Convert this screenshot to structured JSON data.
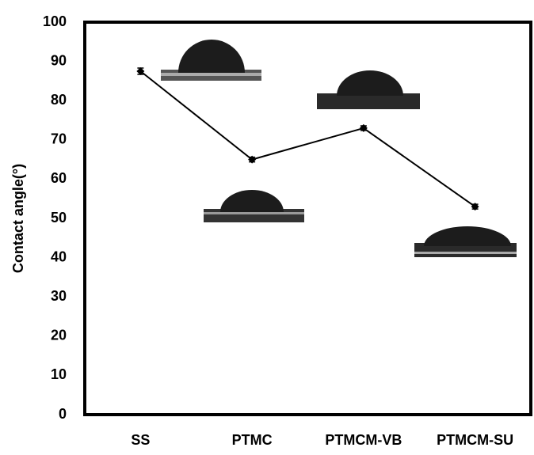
{
  "chart_data": {
    "type": "line",
    "y_label": "Contact angle(°)",
    "categories": [
      "SS",
      "PTMC",
      "PTMCM-VB",
      "PTMCM-SU"
    ],
    "values": [
      87.5,
      65,
      73,
      53
    ],
    "errors": [
      0.8,
      0.6,
      0.6,
      0.6
    ],
    "color": "#000000",
    "ylim": [
      0,
      100
    ],
    "yticks": [
      0,
      10,
      20,
      30,
      40,
      50,
      60,
      70,
      80,
      90,
      100
    ],
    "grid": false
  }
}
